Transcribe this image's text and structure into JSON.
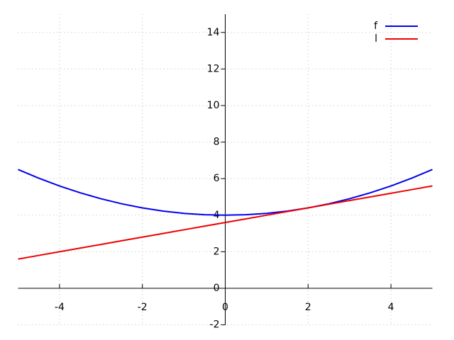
{
  "chart_data": {
    "type": "line",
    "x": [
      -5,
      -4.5,
      -4,
      -3.5,
      -3,
      -2.5,
      -2,
      -1.5,
      -1,
      -0.5,
      0,
      0.5,
      1,
      1.5,
      2,
      2.5,
      3,
      3.5,
      4,
      4.5,
      5
    ],
    "series": [
      {
        "name": "f",
        "color": "#0000ee",
        "values": [
          6.5,
          6.025,
          5.6,
          5.225,
          4.9,
          4.625,
          4.4,
          4.225,
          4.1,
          4.025,
          4,
          4.025,
          4.1,
          4.225,
          4.4,
          4.625,
          4.9,
          5.225,
          5.6,
          6.025,
          6.5
        ]
      },
      {
        "name": "l",
        "color": "#ee0000",
        "values": [
          1.6,
          1.8,
          2,
          2.2,
          2.4,
          2.6,
          2.8,
          3,
          3.2,
          3.4,
          3.6,
          3.8,
          4,
          4.2,
          4.4,
          4.6,
          4.8,
          5,
          5.2,
          5.4,
          5.6
        ]
      }
    ],
    "xlim": [
      -5,
      5
    ],
    "ylim": [
      -2,
      15
    ],
    "xticks": [
      -4,
      -2,
      0,
      2,
      4
    ],
    "yticks": [
      -2,
      0,
      2,
      4,
      6,
      8,
      10,
      12,
      14
    ],
    "grid": true,
    "legend": "top-right"
  }
}
